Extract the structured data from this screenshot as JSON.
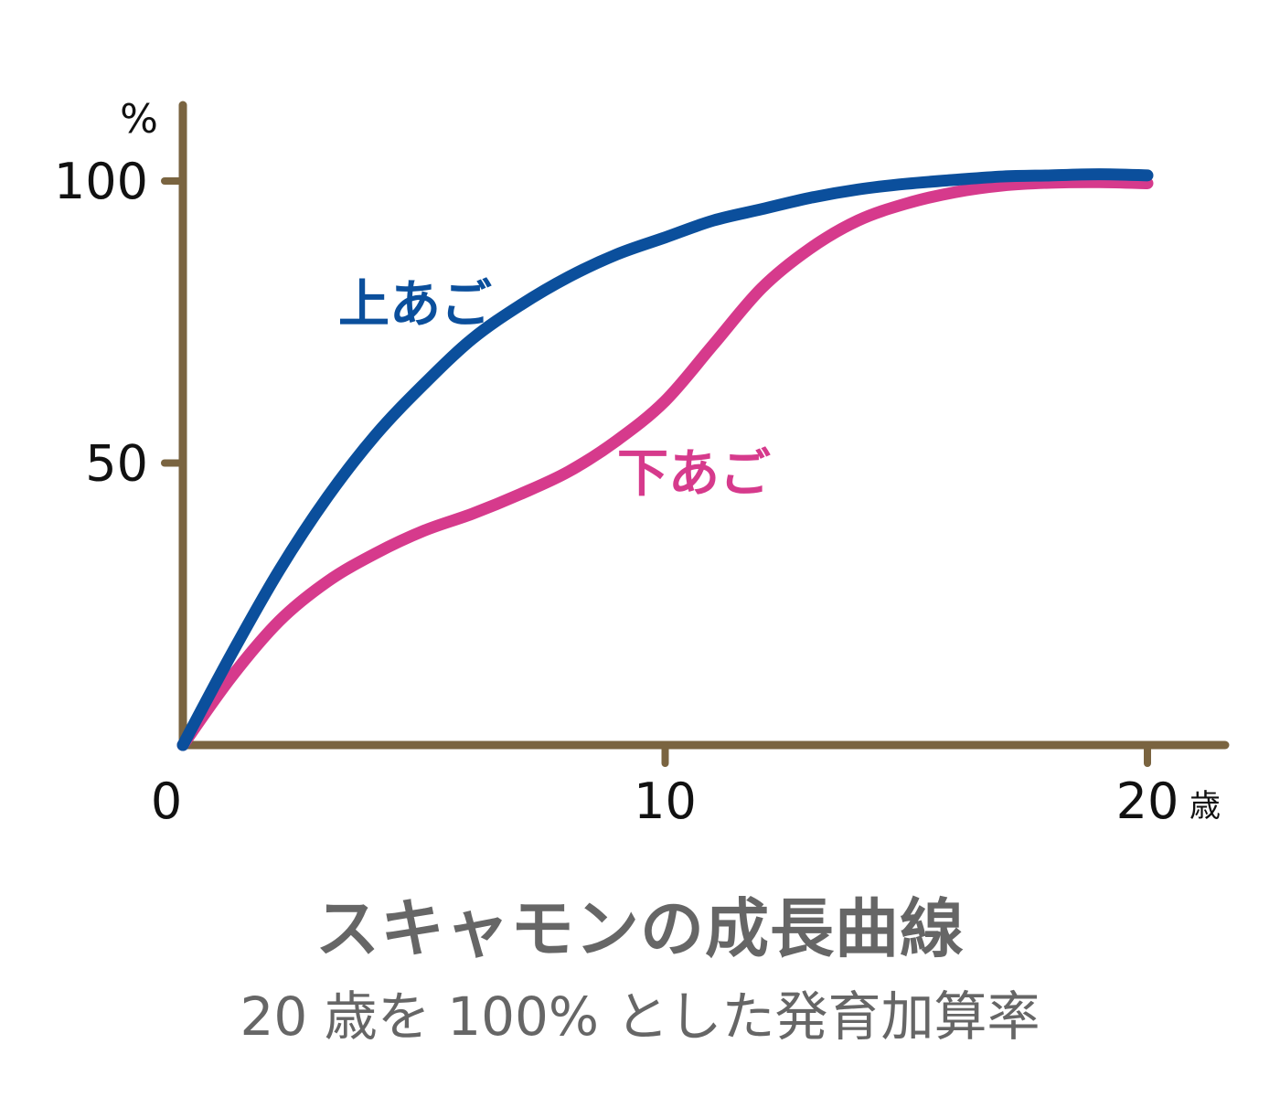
{
  "chart_data": {
    "type": "line",
    "title": "スキャモンの成長曲線",
    "subtitle": "20 歳を 100% とした発育加算率",
    "ylabel": "%",
    "xlabel": "歳",
    "xlim": [
      0,
      20
    ],
    "ylim": [
      0,
      100
    ],
    "x_ticks": [
      {
        "value": 0,
        "label": "0"
      },
      {
        "value": 10,
        "label": "10"
      },
      {
        "value": 20,
        "label": "20"
      }
    ],
    "y_ticks": [
      {
        "value": 50,
        "label": "50"
      },
      {
        "value": 100,
        "label": "100"
      }
    ],
    "grid": false,
    "axis_color": "#7a6440",
    "series": [
      {
        "name": "上あご",
        "color": "#0b4f9c",
        "x": [
          0,
          1,
          2,
          3,
          4,
          5,
          6,
          7,
          8,
          9,
          10,
          11,
          12,
          13,
          14,
          15,
          16,
          17,
          18,
          19,
          20
        ],
        "y": [
          0,
          16,
          31,
          44,
          55,
          64,
          72,
          78,
          83,
          87,
          90,
          93,
          95,
          97,
          98.5,
          99.5,
          100.2,
          100.8,
          101,
          101.2,
          101
        ]
      },
      {
        "name": "下あご",
        "color": "#d63a8c",
        "x": [
          0,
          1,
          2,
          3,
          4,
          5,
          6,
          7,
          8,
          9,
          10,
          11,
          12,
          13,
          14,
          15,
          16,
          17,
          18,
          19,
          20
        ],
        "y": [
          0,
          12,
          22,
          29,
          34,
          38,
          41,
          44.5,
          48.5,
          54,
          61,
          71,
          81,
          88,
          93,
          96,
          98,
          99.2,
          99.7,
          99.8,
          99.6
        ]
      }
    ]
  }
}
